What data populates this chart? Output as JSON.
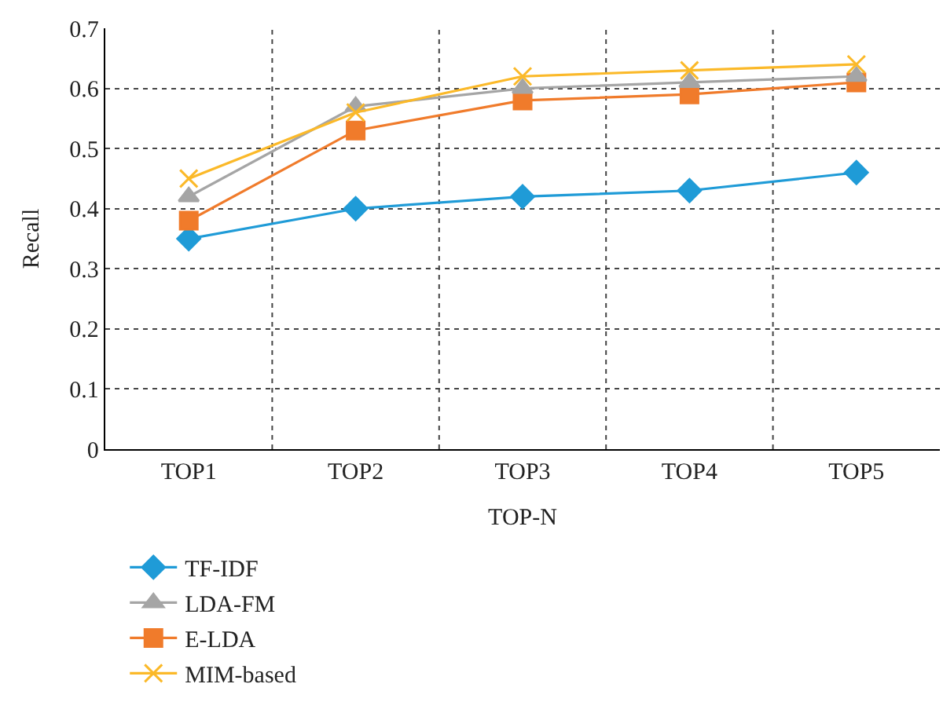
{
  "chart_data": {
    "type": "line",
    "xlabel": "TOP-N",
    "ylabel": "Recall",
    "categories": [
      "TOP1",
      "TOP2",
      "TOP3",
      "TOP4",
      "TOP5"
    ],
    "series": [
      {
        "name": "TF-IDF",
        "color": "#1f9bd7",
        "marker": "diamond",
        "values": [
          0.35,
          0.4,
          0.42,
          0.43,
          0.46
        ]
      },
      {
        "name": "E-LDA",
        "color": "#f07b2b",
        "marker": "square",
        "values": [
          0.38,
          0.53,
          0.58,
          0.59,
          0.61
        ]
      },
      {
        "name": "LDA-FM",
        "color": "#a5a5a5",
        "marker": "triangle",
        "values": [
          0.42,
          0.57,
          0.6,
          0.61,
          0.62
        ]
      },
      {
        "name": "MIM-based",
        "color": "#fbb929",
        "marker": "cross",
        "values": [
          0.45,
          0.56,
          0.62,
          0.63,
          0.64
        ]
      }
    ],
    "ylim": [
      0,
      0.7
    ],
    "yticks": [
      0,
      0.1,
      0.2,
      0.3,
      0.4,
      0.5,
      0.6,
      0.7
    ],
    "grid": true,
    "legend": "bottom",
    "line_style": "solid"
  }
}
